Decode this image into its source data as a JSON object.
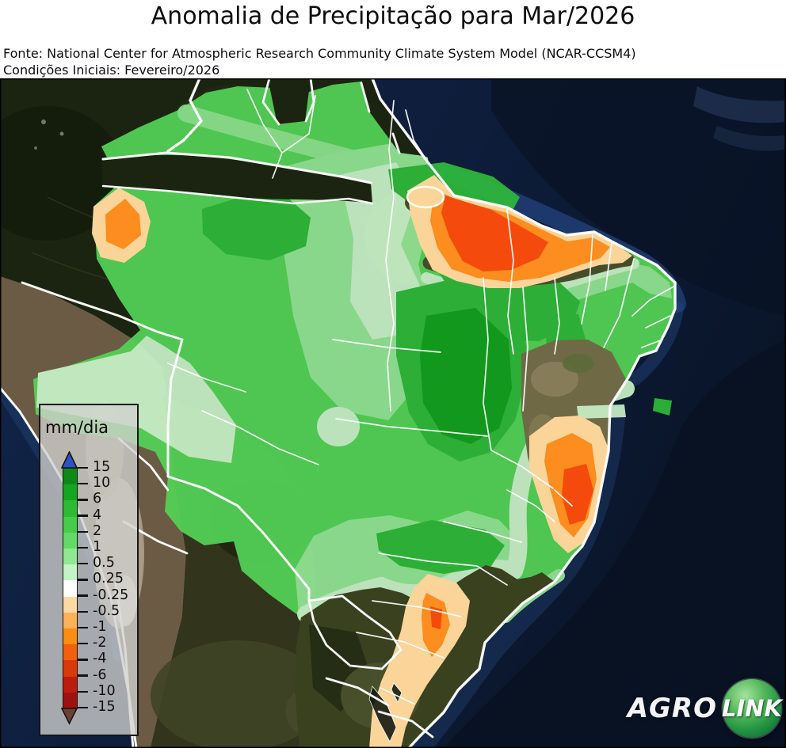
{
  "header": {
    "title": "Anomalia de Precipitação para Mar/2026",
    "source_line1": "Fonte: National Center for Atmospheric Research Community Climate System Model (NCAR-CCSM4)",
    "source_line2": "Condições Iniciais: Fevereiro/2026"
  },
  "legend": {
    "label": "mm/dia",
    "ticks": [
      "15",
      "10",
      "6",
      "4",
      "2",
      "1",
      "0.5",
      "0.25",
      "-0.25",
      "-0.5",
      "-1",
      "-2",
      "-4",
      "-6",
      "-10",
      "-15"
    ],
    "segment_colors": [
      "#0d8918",
      "#16a51f",
      "#2eba33",
      "#46cc49",
      "#63da66",
      "#90e893",
      "#c4f3c6",
      "#ffffff",
      "#fbd9a2",
      "#fdb156",
      "#fb8d12",
      "#f1600d",
      "#da3a0a",
      "#bb1c0d",
      "#9d120f"
    ],
    "arrow_top_color": "#2b52c7",
    "arrow_bottom_color": "#6d4033"
  },
  "logo": {
    "agro": "AGRO",
    "link": "LINK"
  },
  "map": {
    "palette": {
      "anomaly_pale_green": "#c9f3c9",
      "anomaly_light_green": "#93e795",
      "anomaly_green": "#53d457",
      "anomaly_medium_green": "#2eba3b",
      "anomaly_dark_green": "#12a21e",
      "anomaly_tan": "#fbd49a",
      "anomaly_orange": "#fc8d1e",
      "anomaly_red_orange": "#f44b0c",
      "ocean_dark": "#0a1529",
      "ocean_base": "#0d203f",
      "jungle_dark": "#1a2410",
      "andes_brown": "#6b5b44",
      "border_white": "#ffffff"
    }
  }
}
